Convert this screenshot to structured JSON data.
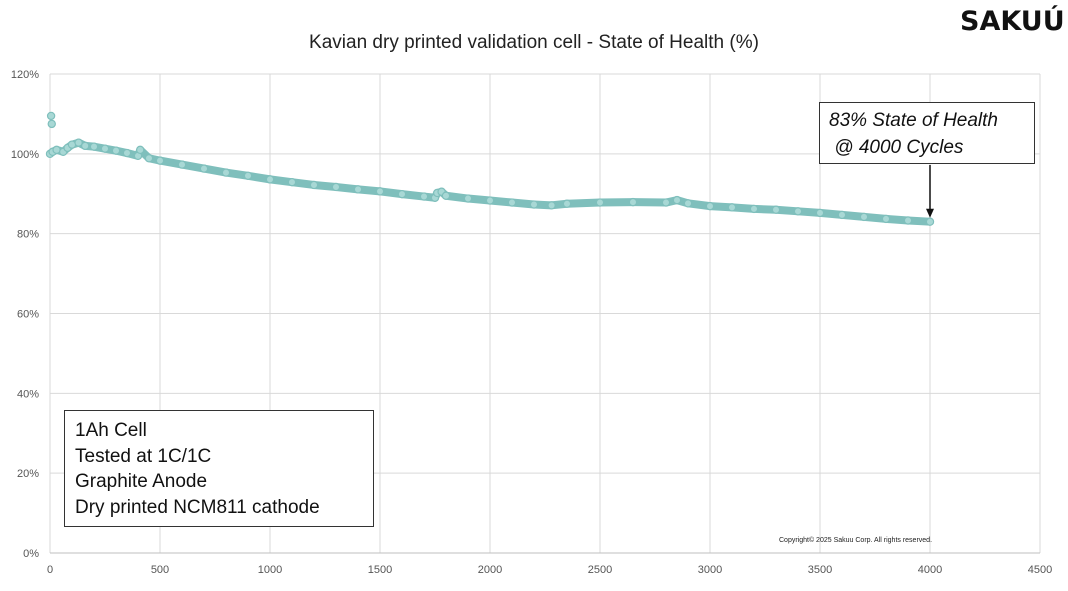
{
  "logo": "SAKUÚ",
  "copyright": "Copyright© 2025 Sakuu Corp. All rights reserved.",
  "chart_data": {
    "type": "scatter",
    "title": "Kavian dry printed validation cell - State of Health (%)",
    "xlabel": "",
    "ylabel": "",
    "xlim": [
      0,
      4500
    ],
    "ylim": [
      0,
      120
    ],
    "x_ticks": [
      "0",
      "500",
      "1000",
      "1500",
      "2000",
      "2500",
      "3000",
      "3500",
      "4000",
      "4500"
    ],
    "y_ticks": [
      "0%",
      "20%",
      "40%",
      "60%",
      "80%",
      "100%",
      "120%"
    ],
    "grid": true,
    "legend": "none",
    "marker_color": "#7fbfbc",
    "marker_fill": "#a8d8d5",
    "points": [
      [
        0,
        100
      ],
      [
        5,
        109.5
      ],
      [
        8,
        107.5
      ],
      [
        12,
        100.5
      ],
      [
        30,
        101
      ],
      [
        60,
        100.5
      ],
      [
        80,
        101.5
      ],
      [
        100,
        102.3
      ],
      [
        130,
        102.8
      ],
      [
        160,
        102
      ],
      [
        200,
        101.8
      ],
      [
        250,
        101.3
      ],
      [
        300,
        100.8
      ],
      [
        350,
        100.2
      ],
      [
        400,
        99.5
      ],
      [
        410,
        101
      ],
      [
        450,
        98.9
      ],
      [
        500,
        98.3
      ],
      [
        600,
        97.3
      ],
      [
        700,
        96.3
      ],
      [
        800,
        95.3
      ],
      [
        900,
        94.5
      ],
      [
        1000,
        93.6
      ],
      [
        1100,
        92.9
      ],
      [
        1200,
        92.2
      ],
      [
        1300,
        91.7
      ],
      [
        1400,
        91.1
      ],
      [
        1500,
        90.6
      ],
      [
        1600,
        89.9
      ],
      [
        1700,
        89.3
      ],
      [
        1750,
        89
      ],
      [
        1760,
        90.2
      ],
      [
        1780,
        90.5
      ],
      [
        1800,
        89.5
      ],
      [
        1900,
        88.8
      ],
      [
        2000,
        88.3
      ],
      [
        2100,
        87.8
      ],
      [
        2200,
        87.3
      ],
      [
        2280,
        87.1
      ],
      [
        2350,
        87.5
      ],
      [
        2500,
        87.8
      ],
      [
        2650,
        87.9
      ],
      [
        2800,
        87.8
      ],
      [
        2850,
        88.4
      ],
      [
        2900,
        87.6
      ],
      [
        3000,
        86.9
      ],
      [
        3100,
        86.6
      ],
      [
        3200,
        86.2
      ],
      [
        3300,
        86
      ],
      [
        3400,
        85.6
      ],
      [
        3500,
        85.2
      ],
      [
        3600,
        84.7
      ],
      [
        3700,
        84.2
      ],
      [
        3800,
        83.7
      ],
      [
        3900,
        83.3
      ],
      [
        4000,
        83
      ]
    ],
    "annotations": {
      "callout": [
        "83% State of Health",
        " @ 4000 Cycles"
      ],
      "callout_target": [
        4000,
        83
      ],
      "spec_box": [
        "1Ah Cell",
        "Tested at 1C/1C",
        "Graphite Anode",
        "Dry printed NCM811 cathode"
      ]
    }
  }
}
